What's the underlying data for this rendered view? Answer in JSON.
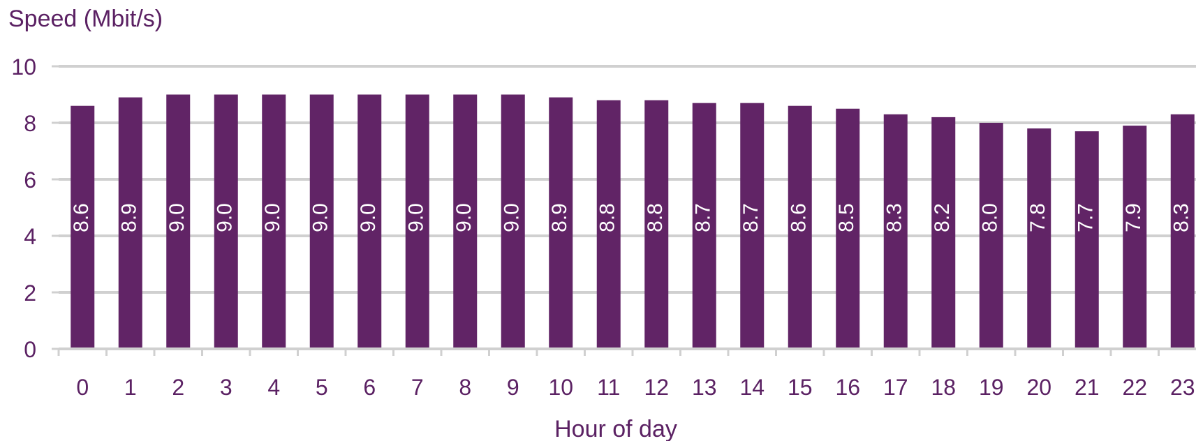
{
  "colors": {
    "bar": "#612466",
    "text": "#5b2163",
    "grid": "#d0d0d0",
    "label": "#ffffff"
  },
  "chart_data": {
    "type": "bar",
    "title": "",
    "xlabel": "Hour of day",
    "ylabel": "Speed (Mbit/s)",
    "ylim": [
      0,
      10
    ],
    "yticks": [
      "0",
      "2",
      "4",
      "6",
      "8",
      "10"
    ],
    "grid": true,
    "categories": [
      "0",
      "1",
      "2",
      "3",
      "4",
      "5",
      "6",
      "7",
      "8",
      "9",
      "10",
      "11",
      "12",
      "13",
      "14",
      "15",
      "16",
      "17",
      "18",
      "19",
      "20",
      "21",
      "22",
      "23"
    ],
    "values": [
      8.6,
      8.9,
      9.0,
      9.0,
      9.0,
      9.0,
      9.0,
      9.0,
      9.0,
      9.0,
      8.9,
      8.8,
      8.8,
      8.7,
      8.7,
      8.6,
      8.5,
      8.3,
      8.2,
      8.0,
      7.8,
      7.7,
      7.9,
      8.3
    ],
    "data_labels": [
      "8.6",
      "8.9",
      "9.0",
      "9.0",
      "9.0",
      "9.0",
      "9.0",
      "9.0",
      "9.0",
      "9.0",
      "8.9",
      "8.8",
      "8.8",
      "8.7",
      "8.7",
      "8.6",
      "8.5",
      "8.3",
      "8.2",
      "8.0",
      "7.8",
      "7.7",
      "7.9",
      "8.3"
    ]
  }
}
